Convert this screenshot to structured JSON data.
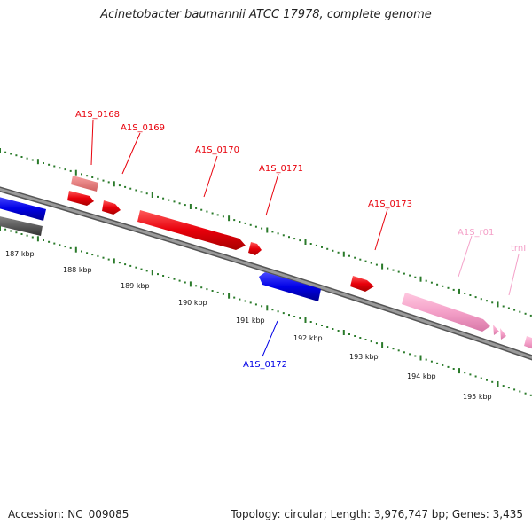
{
  "title": "Acinetobacter baumannii ATCC 17978, complete genome",
  "footer": {
    "accession": "Accession: NC_009085",
    "summary": "Topology: circular; Length: 3,976,747 bp; Genes: 3,435"
  },
  "colors": {
    "forward_gene": "#e8000b",
    "forward_gene_light": "#f08080",
    "reverse_gene": "#0000e6",
    "rna_gene": "#f4a0c8",
    "backbone": "#808080",
    "dark_feature": "#555555",
    "tick": "#2a7a2a"
  },
  "kbp_labels": [
    "187 kbp",
    "188 kbp",
    "189 kbp",
    "190 kbp",
    "191 kbp",
    "192 kbp",
    "193 kbp",
    "194 kbp",
    "195 kbp"
  ],
  "genes": {
    "A1S_0168": "A1S_0168",
    "A1S_0169": "A1S_0169",
    "A1S_0170": "A1S_0170",
    "A1S_0171": "A1S_0171",
    "A1S_0173": "A1S_0173",
    "A1S_r01": "A1S_r01",
    "trnI": "trnI",
    "A1S_0172": "A1S_0172"
  }
}
